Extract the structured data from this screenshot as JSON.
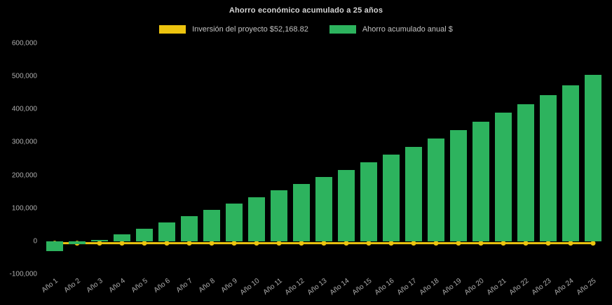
{
  "chart": {
    "title": "Ahorro económico acumulado a 25 años",
    "legend": [
      {
        "label": "Inversión del proyecto $52,168.82",
        "color": "#edc40f"
      },
      {
        "label": "Ahorro acumulado anual $",
        "color": "#2db35e"
      }
    ]
  },
  "chart_data": {
    "type": "bar",
    "title": "Ahorro económico acumulado a 25 años",
    "categories": [
      "Año 1",
      "Año 2",
      "Año 3",
      "Año 4",
      "Año 5",
      "Año 6",
      "Año 7",
      "Año 8",
      "Año 9",
      "Año 10",
      "Año 11",
      "Año 12",
      "Año 13",
      "Año 14",
      "Año 15",
      "Año 16",
      "Año 17",
      "Año 18",
      "Año 19",
      "Año 20",
      "Año 21",
      "Año 22",
      "Año 23",
      "Año 24",
      "Año 25"
    ],
    "series": [
      {
        "name": "Ahorro acumulado anual $",
        "type": "bar",
        "color": "#2db35e",
        "values": [
          -30000,
          -8000,
          5000,
          21000,
          38000,
          57000,
          77000,
          96000,
          115000,
          133000,
          154000,
          173000,
          194000,
          217000,
          240000,
          262000,
          287000,
          311000,
          336000,
          362000,
          389000,
          416000,
          444000,
          473000,
          504000
        ]
      },
      {
        "name": "Inversión del proyecto $52,168.82",
        "type": "line",
        "color": "#edc40f",
        "values": [
          -6000,
          -6000,
          -6000,
          -6000,
          -6000,
          -6000,
          -6000,
          -6000,
          -6000,
          -6000,
          -6000,
          -6000,
          -6000,
          -6000,
          -6000,
          -6000,
          -6000,
          -6000,
          -6000,
          -6000,
          -6000,
          -6000,
          -6000,
          -6000,
          -6000
        ]
      }
    ],
    "ylim": [
      -100000,
      600000
    ],
    "yticks": [
      600000,
      500000,
      400000,
      300000,
      200000,
      100000,
      0,
      -100000
    ],
    "ytick_labels": [
      "600,000",
      "500,000",
      "400,000",
      "300,000",
      "200,000",
      "100,000",
      "0",
      "-100,000"
    ],
    "grid": false,
    "legend_position": "top",
    "background": "#000000"
  }
}
